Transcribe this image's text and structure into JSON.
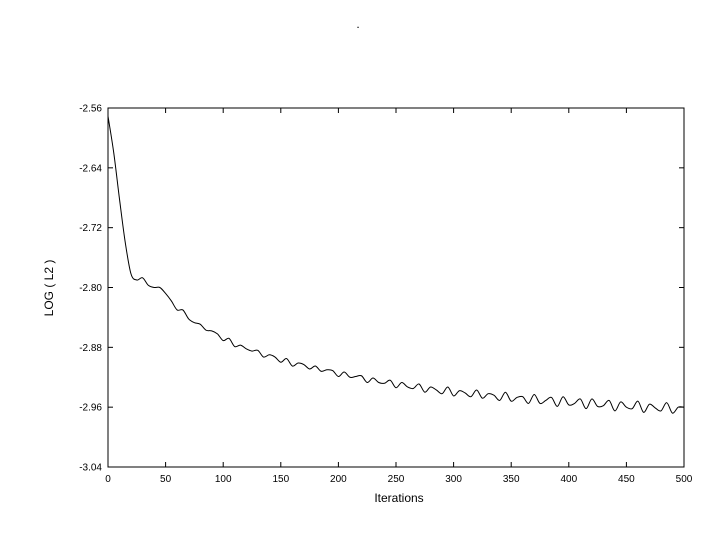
{
  "chart_data": {
    "type": "line",
    "title": ".",
    "xlabel": "Iterations",
    "ylabel": "LOG ( L2 )",
    "xlim": [
      0,
      500
    ],
    "ylim": [
      -3.04,
      -2.56
    ],
    "xticks": [
      0,
      50,
      100,
      150,
      200,
      250,
      300,
      350,
      400,
      450,
      500
    ],
    "xtick_labels": [
      "0",
      "50",
      "100",
      "150",
      "200",
      "250",
      "300",
      "350",
      "400",
      "450",
      "500"
    ],
    "yticks": [
      -2.56,
      -2.64,
      -2.72,
      -2.8,
      -2.88,
      -2.96,
      -3.04
    ],
    "ytick_labels": [
      "-2.56",
      "-2.64",
      "-2.72",
      "-2.80",
      "-2.88",
      "-2.96",
      "-3.04"
    ],
    "grid": false,
    "line_color": "#000000",
    "series": [
      {
        "x": [
          0,
          5,
          10,
          15,
          20,
          25,
          30,
          35,
          40,
          45,
          50,
          55,
          60,
          65,
          70,
          75,
          80,
          85,
          90,
          95,
          100,
          105,
          110,
          115,
          120,
          125,
          130,
          135,
          140,
          145,
          150,
          155,
          160,
          165,
          170,
          175,
          180,
          185,
          190,
          195,
          200,
          205,
          210,
          215,
          220,
          225,
          230,
          235,
          240,
          245,
          250,
          255,
          260,
          265,
          270,
          275,
          280,
          285,
          290,
          295,
          300,
          305,
          310,
          315,
          320,
          325,
          330,
          335,
          340,
          345,
          350,
          355,
          360,
          365,
          370,
          375,
          380,
          385,
          390,
          395,
          400,
          405,
          410,
          415,
          420,
          425,
          430,
          435,
          440,
          445,
          450,
          455,
          460,
          465,
          470,
          475,
          480,
          485,
          490,
          495,
          500
        ],
        "y": [
          -2.571,
          -2.62,
          -2.682,
          -2.74,
          -2.782,
          -2.79,
          -2.787,
          -2.797,
          -2.8,
          -2.8,
          -2.808,
          -2.818,
          -2.83,
          -2.83,
          -2.842,
          -2.847,
          -2.849,
          -2.857,
          -2.858,
          -2.862,
          -2.871,
          -2.868,
          -2.879,
          -2.877,
          -2.882,
          -2.885,
          -2.884,
          -2.893,
          -2.89,
          -2.893,
          -2.9,
          -2.895,
          -2.905,
          -2.901,
          -2.903,
          -2.909,
          -2.905,
          -2.912,
          -2.91,
          -2.911,
          -2.919,
          -2.913,
          -2.92,
          -2.919,
          -2.918,
          -2.927,
          -2.921,
          -2.927,
          -2.928,
          -2.924,
          -2.934,
          -2.927,
          -2.933,
          -2.935,
          -2.929,
          -2.94,
          -2.933,
          -2.937,
          -2.942,
          -2.933,
          -2.945,
          -2.938,
          -2.941,
          -2.946,
          -2.937,
          -2.948,
          -2.942,
          -2.944,
          -2.951,
          -2.94,
          -2.952,
          -2.947,
          -2.946,
          -2.955,
          -2.943,
          -2.955,
          -2.951,
          -2.947,
          -2.959,
          -2.946,
          -2.957,
          -2.955,
          -2.949,
          -2.962,
          -2.949,
          -2.959,
          -2.958,
          -2.951,
          -2.965,
          -2.953,
          -2.96,
          -2.962,
          -2.952,
          -2.967,
          -2.956,
          -2.961,
          -2.965,
          -2.954,
          -2.968,
          -2.96,
          -2.96
        ]
      }
    ]
  }
}
